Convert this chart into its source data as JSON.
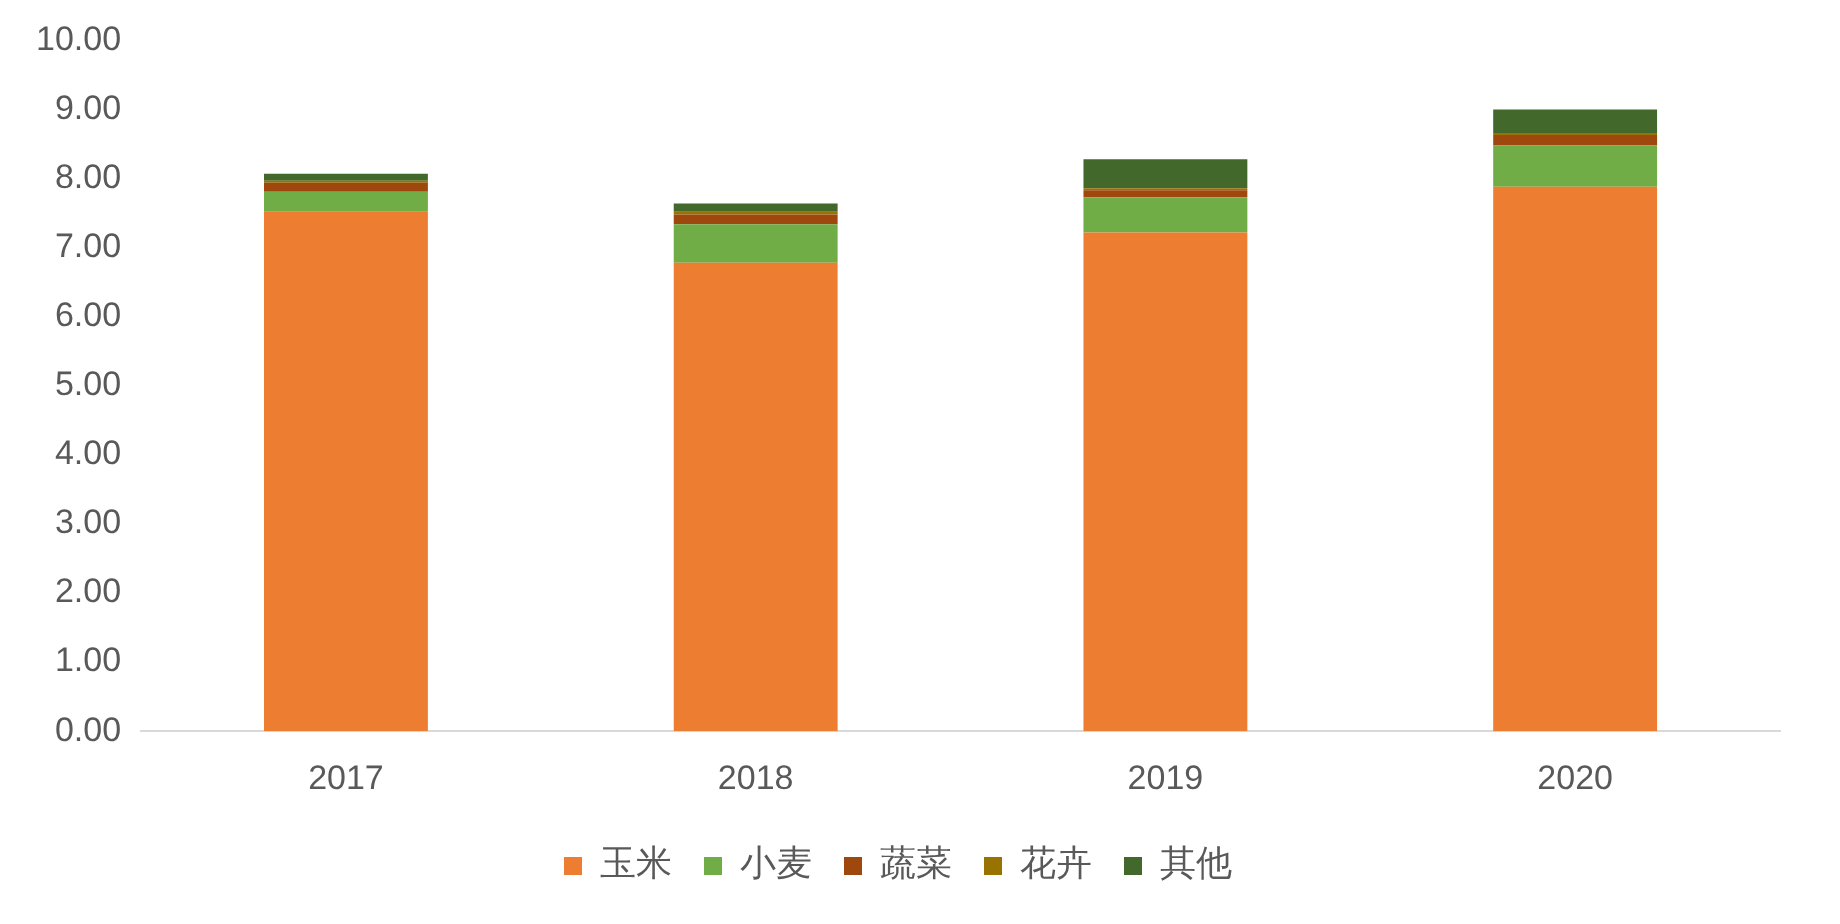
{
  "chart_data": {
    "type": "bar",
    "stacked": true,
    "categories": [
      "2017",
      "2018",
      "2019",
      "2020"
    ],
    "series": [
      {
        "name": "玉米",
        "color": "#ed7d31",
        "values": [
          7.52,
          6.78,
          7.22,
          7.88
        ]
      },
      {
        "name": "小麦",
        "color": "#70ad47",
        "values": [
          0.29,
          0.56,
          0.51,
          0.6
        ]
      },
      {
        "name": "蔬菜",
        "color": "#9e480e",
        "values": [
          0.13,
          0.14,
          0.1,
          0.15
        ]
      },
      {
        "name": "花卉",
        "color": "#997300",
        "values": [
          0.03,
          0.04,
          0.03,
          0.03
        ]
      },
      {
        "name": "其他",
        "color": "#43682b",
        "values": [
          0.1,
          0.12,
          0.42,
          0.34
        ]
      }
    ],
    "ylim": [
      0,
      10
    ],
    "yticks": [
      {
        "value": 0,
        "label": "0.00"
      },
      {
        "value": 1,
        "label": "1.00"
      },
      {
        "value": 2,
        "label": "2.00"
      },
      {
        "value": 3,
        "label": "3.00"
      },
      {
        "value": 4,
        "label": "4.00"
      },
      {
        "value": 5,
        "label": "5.00"
      },
      {
        "value": 6,
        "label": "6.00"
      },
      {
        "value": 7,
        "label": "7.00"
      },
      {
        "value": 8,
        "label": "8.00"
      },
      {
        "value": 9,
        "label": "9.00"
      },
      {
        "value": 10,
        "label": "10.00"
      }
    ],
    "grid": false,
    "legend": "bottom"
  }
}
